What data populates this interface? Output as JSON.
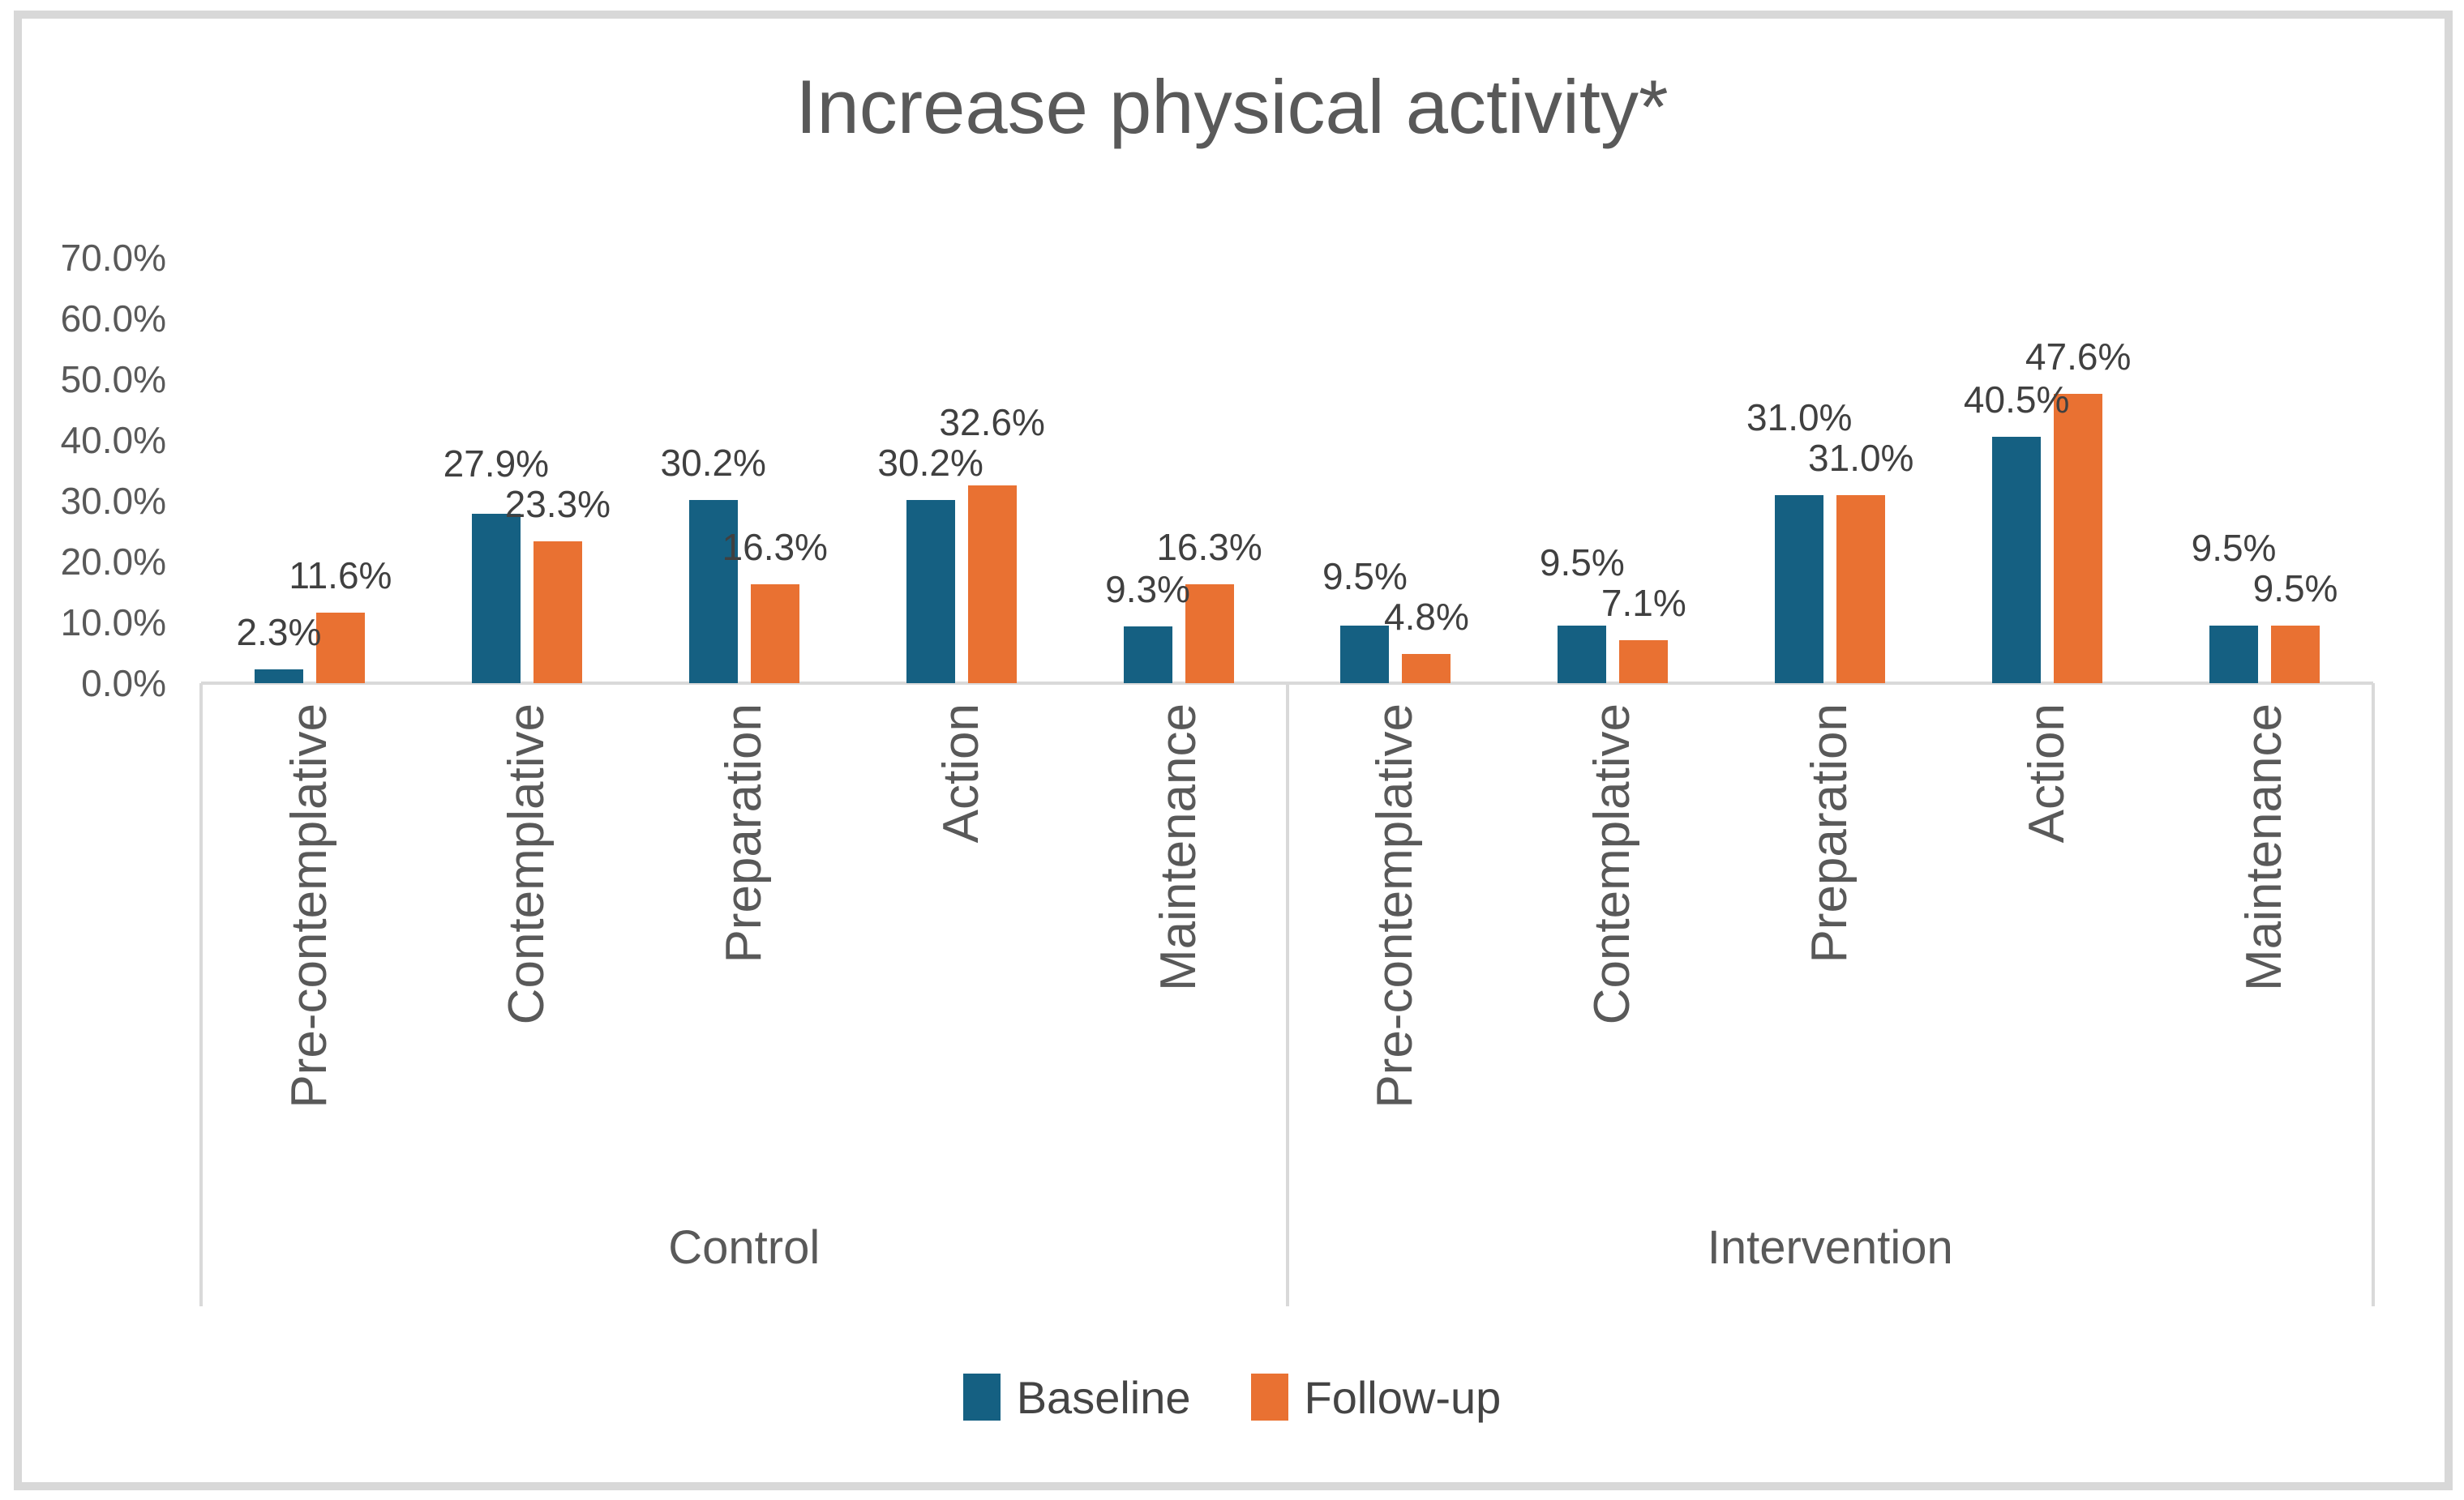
{
  "chart_data": {
    "type": "bar",
    "title": "Increase physical activity*",
    "ylabel": "",
    "xlabel": "",
    "ylim": [
      0,
      70
    ],
    "ytick_step": 10,
    "ytick_labels": [
      "70.0%",
      "60.0%",
      "50.0%",
      "40.0%",
      "30.0%",
      "20.0%",
      "10.0%",
      "0.0%"
    ],
    "grid": false,
    "legend_position": "bottom",
    "group_labels": [
      "Control",
      "Intervention"
    ],
    "categories": [
      "Pre-contemplative",
      "Contemplative",
      "Preparation",
      "Action",
      "Maintenance",
      "Pre-contemplative",
      "Contemplative",
      "Preparation",
      "Action",
      "Maintenance"
    ],
    "series": [
      {
        "name": "Baseline",
        "color": "#156082",
        "values": [
          2.3,
          27.9,
          30.2,
          30.2,
          9.3,
          9.5,
          9.5,
          31.0,
          40.5,
          9.5
        ],
        "labels": [
          "2.3%",
          "27.9%",
          "30.2%",
          "30.2%",
          "9.3%",
          "9.5%",
          "9.5%",
          "31.0%",
          "40.5%",
          "9.5%"
        ]
      },
      {
        "name": "Follow-up",
        "color": "#E97132",
        "values": [
          11.6,
          23.3,
          16.3,
          32.6,
          16.3,
          4.8,
          7.1,
          31.0,
          47.6,
          9.5
        ],
        "labels": [
          "11.6%",
          "23.3%",
          "16.3%",
          "32.6%",
          "16.3%",
          "4.8%",
          "7.1%",
          "31.0%",
          "47.6%",
          "9.5%"
        ]
      }
    ],
    "colors": {
      "title_text": "#595959",
      "axis_text": "#595959",
      "data_label_text": "#404040",
      "axis_line": "#d9d9d9",
      "frame_border": "#d8d8d8"
    }
  }
}
